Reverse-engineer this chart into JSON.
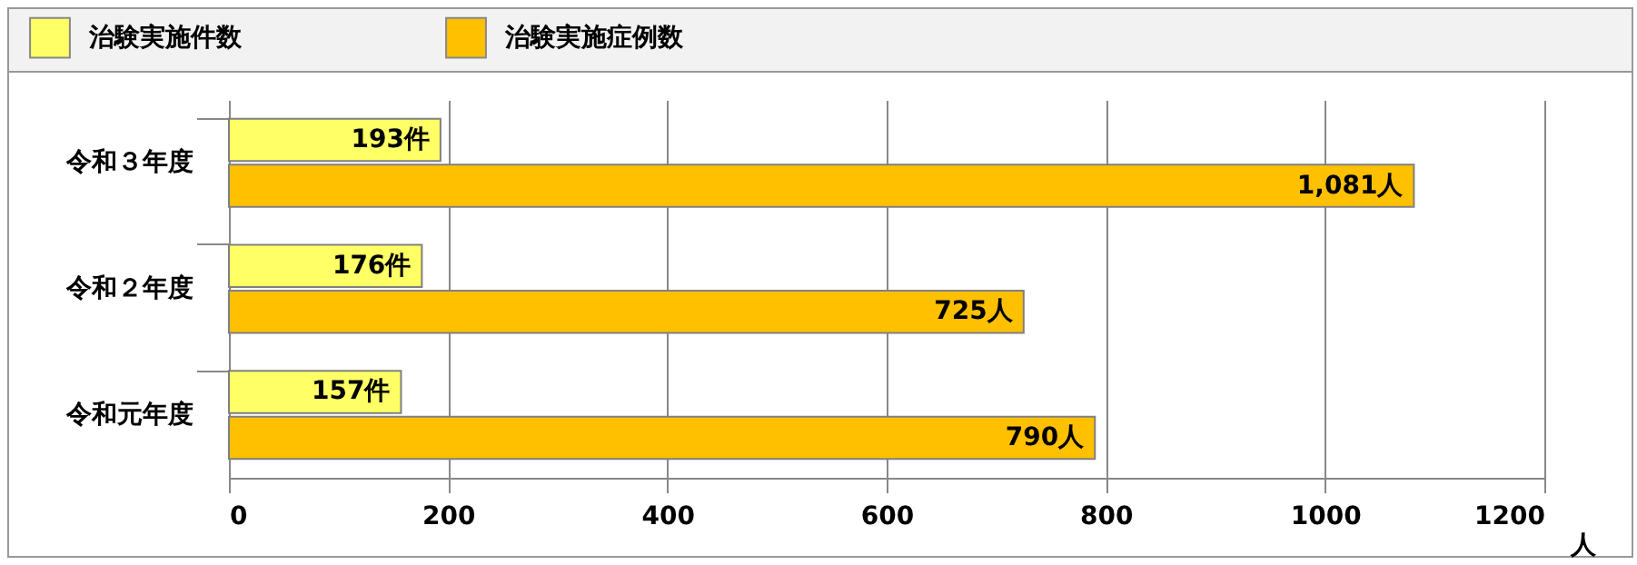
{
  "chart_data": {
    "type": "bar",
    "orientation": "horizontal",
    "categories": [
      "令和３年度",
      "令和２年度",
      "令和元年度"
    ],
    "series": [
      {
        "name": "治験実施件数",
        "color": "#ffff66",
        "values": [
          193,
          176,
          157
        ],
        "value_labels": [
          "193件",
          "176件",
          "157件"
        ]
      },
      {
        "name": "治験実施症例数",
        "color": "#ffc000",
        "values": [
          1081,
          725,
          790
        ],
        "value_labels": [
          "1,081人",
          "725人",
          "790人"
        ]
      }
    ],
    "xlabel": "人",
    "xlim": [
      0,
      1200
    ],
    "xticks": [
      0,
      200,
      400,
      600,
      800,
      1000,
      1200
    ],
    "grid": "x",
    "legend": "top left"
  }
}
